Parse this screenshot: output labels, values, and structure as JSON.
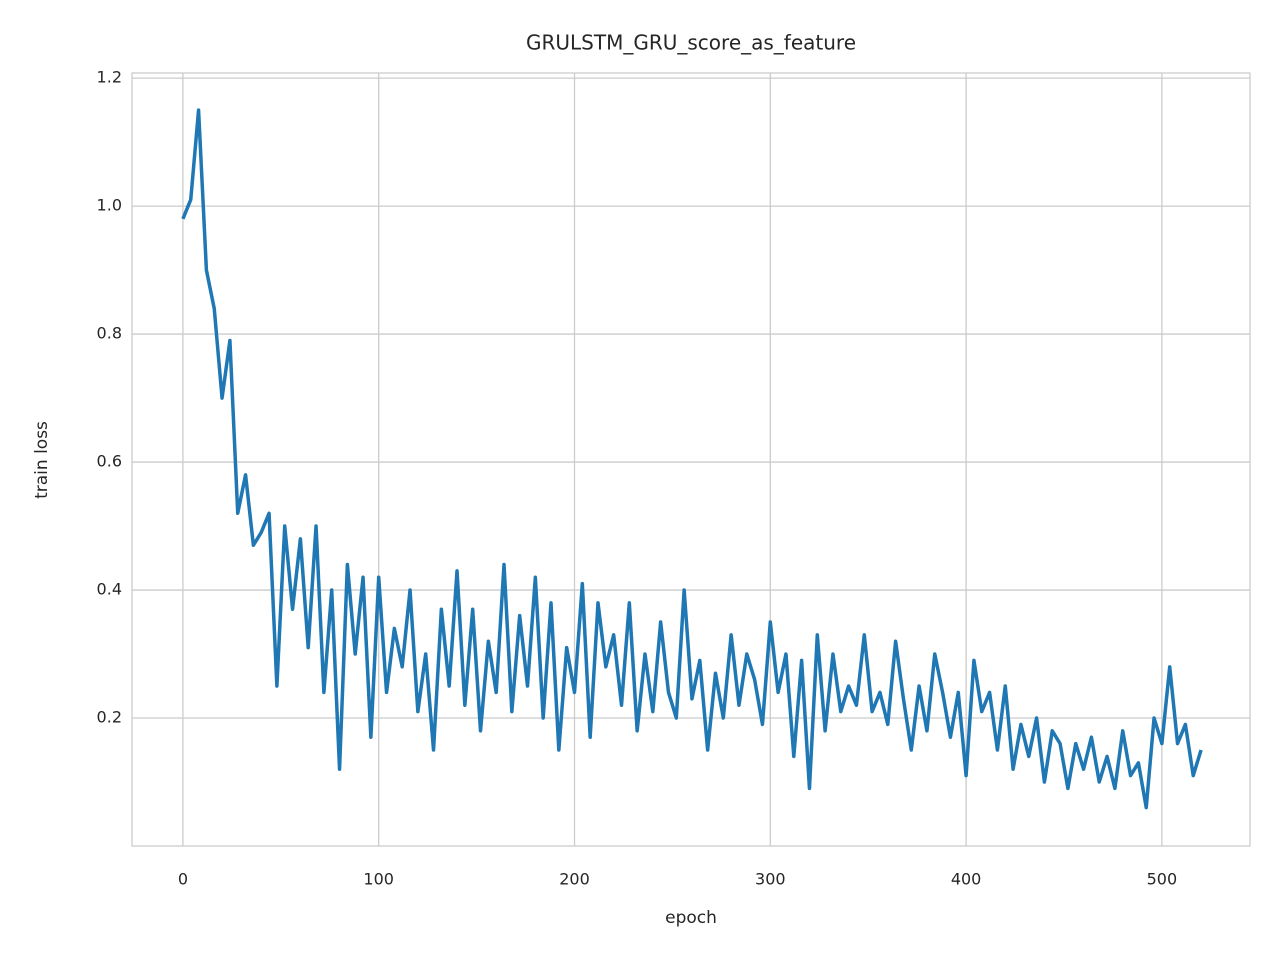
{
  "chart_data": {
    "type": "line",
    "title": "GRULSTM_GRU_score_as_feature",
    "x_label": "epoch",
    "y_label": "train loss",
    "x": [
      0,
      4,
      8,
      12,
      16,
      20,
      24,
      28,
      32,
      36,
      40,
      44,
      48,
      52,
      56,
      60,
      64,
      68,
      72,
      76,
      80,
      84,
      88,
      92,
      96,
      100,
      104,
      108,
      112,
      116,
      120,
      124,
      128,
      132,
      136,
      140,
      144,
      148,
      152,
      156,
      160,
      164,
      168,
      172,
      176,
      180,
      184,
      188,
      192,
      196,
      200,
      204,
      208,
      212,
      216,
      220,
      224,
      228,
      232,
      236,
      240,
      244,
      248,
      252,
      256,
      260,
      264,
      268,
      272,
      276,
      280,
      284,
      288,
      292,
      296,
      300,
      304,
      308,
      312,
      316,
      320,
      324,
      328,
      332,
      336,
      340,
      344,
      348,
      352,
      356,
      360,
      364,
      368,
      372,
      376,
      380,
      384,
      388,
      392,
      396,
      400,
      404,
      408,
      412,
      416,
      420,
      424,
      428,
      432,
      436,
      440,
      444,
      448,
      452,
      456,
      460,
      464,
      468,
      472,
      476,
      480,
      484,
      488,
      492,
      496,
      500,
      504,
      508,
      512,
      516,
      520
    ],
    "series": [
      {
        "name": "train loss",
        "color": "#1f77b4",
        "values": [
          0.98,
          1.01,
          1.15,
          0.9,
          0.84,
          0.7,
          0.79,
          0.52,
          0.58,
          0.47,
          0.49,
          0.52,
          0.25,
          0.5,
          0.37,
          0.48,
          0.31,
          0.5,
          0.24,
          0.4,
          0.12,
          0.44,
          0.3,
          0.42,
          0.17,
          0.42,
          0.24,
          0.34,
          0.28,
          0.4,
          0.21,
          0.3,
          0.15,
          0.37,
          0.25,
          0.43,
          0.22,
          0.37,
          0.18,
          0.32,
          0.24,
          0.44,
          0.21,
          0.36,
          0.25,
          0.42,
          0.2,
          0.38,
          0.15,
          0.31,
          0.24,
          0.41,
          0.17,
          0.38,
          0.28,
          0.33,
          0.22,
          0.38,
          0.18,
          0.3,
          0.21,
          0.35,
          0.24,
          0.2,
          0.4,
          0.23,
          0.29,
          0.15,
          0.27,
          0.2,
          0.33,
          0.22,
          0.3,
          0.26,
          0.19,
          0.35,
          0.24,
          0.3,
          0.14,
          0.29,
          0.09,
          0.33,
          0.18,
          0.3,
          0.21,
          0.25,
          0.22,
          0.33,
          0.21,
          0.24,
          0.19,
          0.32,
          0.23,
          0.15,
          0.25,
          0.18,
          0.3,
          0.24,
          0.17,
          0.24,
          0.11,
          0.29,
          0.21,
          0.24,
          0.15,
          0.25,
          0.12,
          0.19,
          0.14,
          0.2,
          0.1,
          0.18,
          0.16,
          0.09,
          0.16,
          0.12,
          0.17,
          0.1,
          0.14,
          0.09,
          0.18,
          0.11,
          0.13,
          0.06,
          0.2,
          0.16,
          0.28,
          0.16,
          0.19,
          0.11,
          0.15
        ]
      }
    ],
    "xlim": [
      -26,
      545
    ],
    "ylim": [
      0,
      1.208
    ],
    "xticks": [
      0,
      100,
      200,
      300,
      400,
      500
    ],
    "yticks": [
      0.2,
      0.4,
      0.6,
      0.8,
      {
        "value": 1,
        "label": "1.0"
      },
      1.2
    ],
    "grid": true
  }
}
